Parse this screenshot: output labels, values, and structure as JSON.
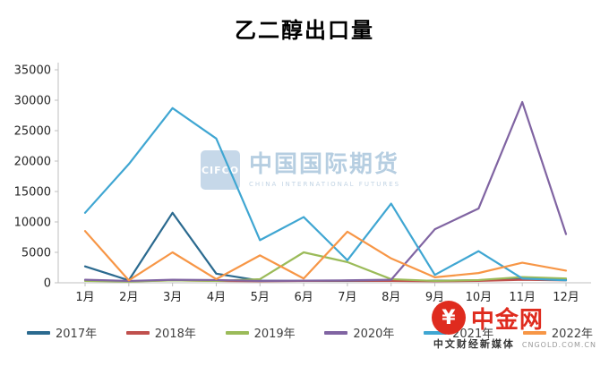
{
  "page": {
    "background": "#ffffff"
  },
  "chart_data": {
    "type": "line",
    "title": "乙二醇出口量",
    "categories": [
      "1月",
      "2月",
      "3月",
      "4月",
      "5月",
      "6月",
      "7月",
      "8月",
      "9月",
      "10月",
      "11月",
      "12月"
    ],
    "xlabel": "",
    "ylabel": "",
    "ylim": [
      0,
      35000
    ],
    "yticks": [
      0,
      5000,
      10000,
      15000,
      20000,
      25000,
      30000,
      35000
    ],
    "grid": false,
    "legend_position": "bottom",
    "axis_color": "#BFBFBF",
    "tick_label_color": "#262626",
    "series": [
      {
        "name": "2017年",
        "color": "#2B6A8F",
        "values": [
          2700,
          400,
          11500,
          1500,
          350,
          300,
          300,
          300,
          350,
          400,
          800,
          500
        ]
      },
      {
        "name": "2018年",
        "color": "#C0504D",
        "values": [
          400,
          250,
          400,
          300,
          250,
          300,
          350,
          300,
          250,
          300,
          500,
          400
        ]
      },
      {
        "name": "2019年",
        "color": "#9BBB59",
        "values": [
          300,
          200,
          400,
          300,
          600,
          5000,
          3400,
          600,
          300,
          450,
          950,
          700
        ]
      },
      {
        "name": "2020年",
        "color": "#8064A2",
        "values": [
          500,
          300,
          500,
          450,
          300,
          350,
          400,
          500,
          8800,
          12200,
          29700,
          8000
        ]
      },
      {
        "name": "2021年",
        "color": "#3FA6D2",
        "values": [
          11500,
          19500,
          28700,
          23700,
          7000,
          10800,
          3700,
          13000,
          1300,
          5200,
          700,
          400
        ]
      },
      {
        "name": "2022年",
        "color": "#F79646",
        "values": [
          8500,
          400,
          5000,
          600,
          4500,
          700,
          8400,
          4000,
          900,
          1600,
          3300,
          2000
        ]
      }
    ]
  },
  "watermarks": {
    "cifco": {
      "logo_text": "CIFCO",
      "title": "中国国际期货",
      "subtitle": "CHINA INTERNATIONAL FUTURES"
    },
    "cngold": {
      "name": "中金网",
      "currency_glyph": "¥",
      "tagline": "中文财经新媒体",
      "url": "CNGOLD.COM.CN",
      "brand_red": "#DF2B1E"
    }
  }
}
